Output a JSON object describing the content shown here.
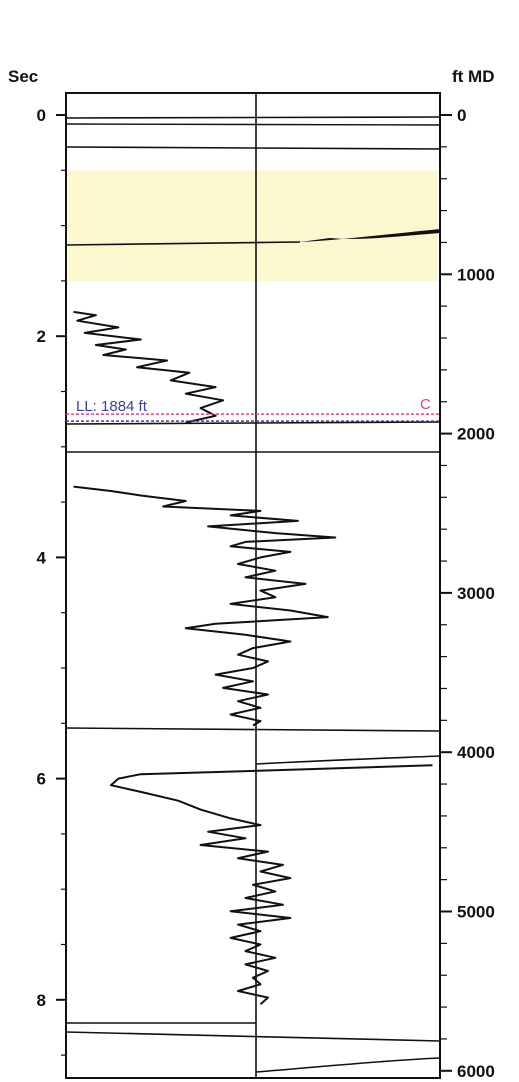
{
  "chart_data": {
    "type": "line",
    "left_axis": {
      "title": "Sec",
      "ticks": [
        "0",
        "2",
        "4",
        "6",
        "8"
      ],
      "range": [
        0,
        8.7
      ]
    },
    "right_axis": {
      "title": "ft MD",
      "ticks": [
        "0",
        "1000",
        "2000",
        "3000",
        "4000",
        "5000",
        "6000"
      ],
      "range": [
        0,
        6000
      ]
    },
    "highlight_band": {
      "from_sec": 0.5,
      "to_sec": 1.5,
      "color": "#fbf7cf"
    },
    "marker": {
      "label": "LL: 1884 ft",
      "depth_ft": 1884,
      "side_label": "C",
      "color_pink": "#e8408a",
      "color_blue": "#3b3ea8"
    },
    "log_curve": {
      "color": "#111111",
      "points": [
        [
          1.78,
          0.02
        ],
        [
          1.81,
          0.08
        ],
        [
          1.86,
          0.03
        ],
        [
          1.92,
          0.14
        ],
        [
          1.97,
          0.05
        ],
        [
          2.03,
          0.2
        ],
        [
          2.08,
          0.08
        ],
        [
          2.12,
          0.16
        ],
        [
          2.17,
          0.1
        ],
        [
          2.22,
          0.27
        ],
        [
          2.28,
          0.19
        ],
        [
          2.33,
          0.33
        ],
        [
          2.4,
          0.28
        ],
        [
          2.46,
          0.4
        ],
        [
          2.52,
          0.32
        ],
        [
          2.58,
          0.42
        ],
        [
          2.65,
          0.36
        ],
        [
          2.72,
          0.4
        ],
        [
          2.78,
          0.32
        ]
      ],
      "segments": [
        [
          [
            3.36,
            0.02
          ],
          [
            3.4,
            0.12
          ],
          [
            3.44,
            0.2
          ],
          [
            3.49,
            0.32
          ],
          [
            3.54,
            0.26
          ],
          [
            3.58,
            0.52
          ],
          [
            3.62,
            0.44
          ],
          [
            3.67,
            0.62
          ],
          [
            3.72,
            0.38
          ],
          [
            3.78,
            0.56
          ],
          [
            3.82,
            0.72
          ],
          [
            3.86,
            0.48
          ],
          [
            3.9,
            0.44
          ],
          [
            3.95,
            0.6
          ],
          [
            4.0,
            0.52
          ],
          [
            4.06,
            0.46
          ],
          [
            4.12,
            0.56
          ],
          [
            4.18,
            0.48
          ],
          [
            4.24,
            0.64
          ],
          [
            4.3,
            0.52
          ],
          [
            4.36,
            0.56
          ],
          [
            4.42,
            0.44
          ],
          [
            4.48,
            0.6
          ],
          [
            4.54,
            0.7
          ],
          [
            4.6,
            0.4
          ],
          [
            4.64,
            0.32
          ],
          [
            4.7,
            0.48
          ],
          [
            4.76,
            0.6
          ],
          [
            4.82,
            0.5
          ],
          [
            4.88,
            0.46
          ],
          [
            4.94,
            0.54
          ],
          [
            5.0,
            0.5
          ],
          [
            5.06,
            0.4
          ],
          [
            5.12,
            0.5
          ],
          [
            5.18,
            0.42
          ],
          [
            5.24,
            0.54
          ],
          [
            5.3,
            0.46
          ],
          [
            5.36,
            0.52
          ],
          [
            5.42,
            0.44
          ],
          [
            5.48,
            0.52
          ],
          [
            5.52,
            0.5
          ]
        ],
        [
          [
            5.88,
            0.98
          ],
          [
            5.92,
            0.6
          ],
          [
            5.96,
            0.2
          ],
          [
            6.0,
            0.14
          ],
          [
            6.06,
            0.12
          ],
          [
            6.12,
            0.2
          ],
          [
            6.2,
            0.3
          ],
          [
            6.28,
            0.36
          ],
          [
            6.36,
            0.44
          ],
          [
            6.42,
            0.52
          ],
          [
            6.48,
            0.38
          ],
          [
            6.54,
            0.48
          ],
          [
            6.6,
            0.36
          ],
          [
            6.66,
            0.54
          ],
          [
            6.72,
            0.46
          ],
          [
            6.78,
            0.58
          ],
          [
            6.84,
            0.52
          ],
          [
            6.9,
            0.6
          ],
          [
            6.96,
            0.5
          ],
          [
            7.02,
            0.56
          ],
          [
            7.08,
            0.48
          ],
          [
            7.14,
            0.58
          ],
          [
            7.2,
            0.44
          ],
          [
            7.26,
            0.6
          ],
          [
            7.32,
            0.46
          ],
          [
            7.38,
            0.52
          ],
          [
            7.44,
            0.44
          ],
          [
            7.5,
            0.52
          ],
          [
            7.56,
            0.48
          ],
          [
            7.62,
            0.56
          ],
          [
            7.68,
            0.48
          ],
          [
            7.74,
            0.54
          ],
          [
            7.8,
            0.5
          ],
          [
            7.86,
            0.52
          ],
          [
            7.92,
            0.46
          ],
          [
            7.98,
            0.54
          ],
          [
            8.04,
            0.52
          ]
        ]
      ]
    }
  }
}
